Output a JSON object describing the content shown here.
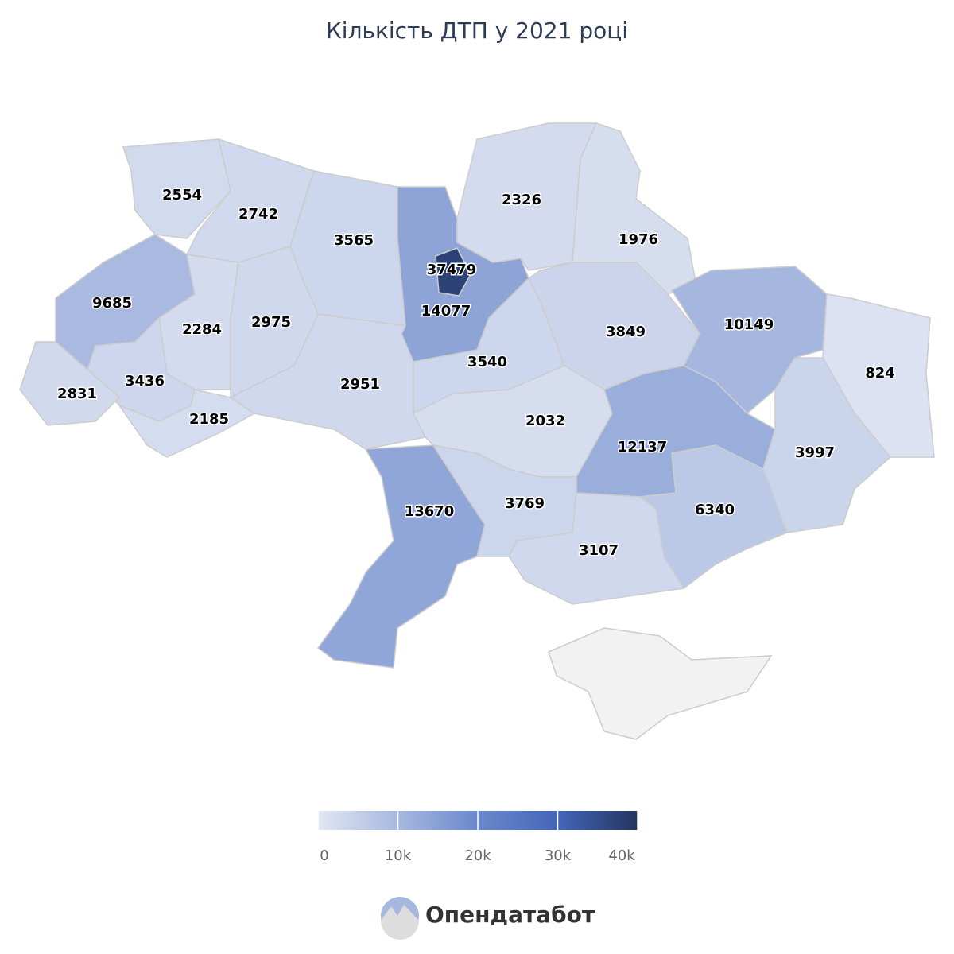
{
  "title": "Кількість ДТП у 2021 році",
  "chart_data": {
    "type": "choropleth",
    "values": [
      2554,
      2742,
      3565,
      37479,
      14077,
      2326,
      1976,
      9685,
      2284,
      2975,
      3849,
      10149,
      824,
      3436,
      2831,
      2185,
      2951,
      3540,
      2032,
      12137,
      3997,
      13670,
      3769,
      6340,
      3107
    ],
    "clim": [
      0,
      40000
    ],
    "cticks": [
      0,
      {
        "value": 10000,
        "label": "10k"
      },
      {
        "value": 20000,
        "label": "20k"
      },
      {
        "value": 30000,
        "label": "30k"
      },
      {
        "value": 40000,
        "label": "40k"
      }
    ],
    "colorscale": [
      "#e1e6f3",
      "#a7b8df",
      "#6a88cc",
      "#4466b8",
      "#243560"
    ]
  },
  "brand": "Опендатабот"
}
